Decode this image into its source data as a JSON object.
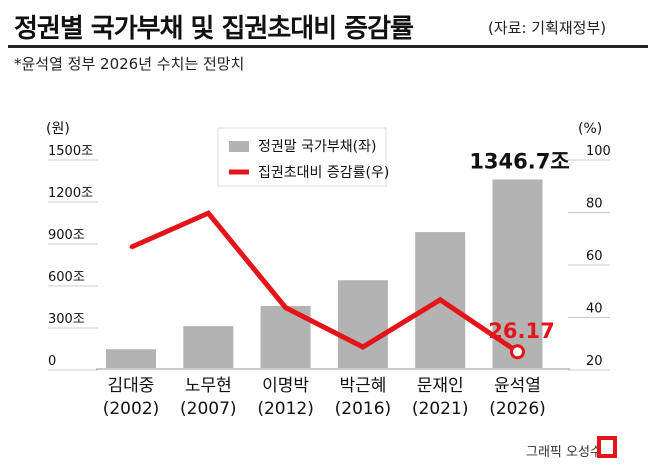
{
  "header": {
    "title": "정권별 국가부채 및 집권초대비 증감률",
    "source": "(자료: 기획재정부)",
    "note": "*윤석열 정부 2026년 수치는 전망치"
  },
  "footer": {
    "credit": "그래픽 오성수"
  },
  "colors": {
    "bar": "#b3b3b3",
    "line": "#e3151a",
    "text": "#111111",
    "grid": "#cccccc"
  },
  "chart_data": {
    "type": "bar",
    "categories": [
      "김대중\n(2002)",
      "노무현\n(2007)",
      "이명박\n(2012)",
      "박근혜\n(2016)",
      "문재인\n(2021)",
      "윤석열\n(2026)"
    ],
    "series": [
      {
        "name": "정권말 국가부채(좌)",
        "type": "bar",
        "axis": "left",
        "values": [
          133.8,
          299.2,
          443.1,
          626.9,
          970.7,
          1346.7
        ]
      },
      {
        "name": "집권초대비 증감률(우)",
        "type": "line",
        "axis": "right",
        "values": [
          66,
          79,
          43,
          28,
          46,
          26.17
        ]
      }
    ],
    "left_axis": {
      "label": "(원)",
      "ylim": [
        0,
        1500
      ],
      "ticks": [
        0,
        300,
        600,
        900,
        1200,
        1500
      ],
      "tick_labels": [
        "0",
        "300조",
        "600조",
        "900조",
        "1200조",
        "1500조"
      ]
    },
    "right_axis": {
      "label": "(%)",
      "ylim": [
        20,
        100
      ],
      "ticks": [
        20,
        40,
        60,
        80,
        100
      ],
      "tick_labels": [
        "20",
        "40",
        "60",
        "80",
        "100"
      ]
    },
    "annotations": [
      {
        "series": 0,
        "index": 5,
        "text": "1346.7조"
      },
      {
        "series": 1,
        "index": 5,
        "text": "26.17"
      }
    ],
    "legend": {
      "position": "top-center",
      "entries": [
        "정권말 국가부채(좌)",
        "집권초대비 증감률(우)"
      ]
    },
    "grid": true
  }
}
